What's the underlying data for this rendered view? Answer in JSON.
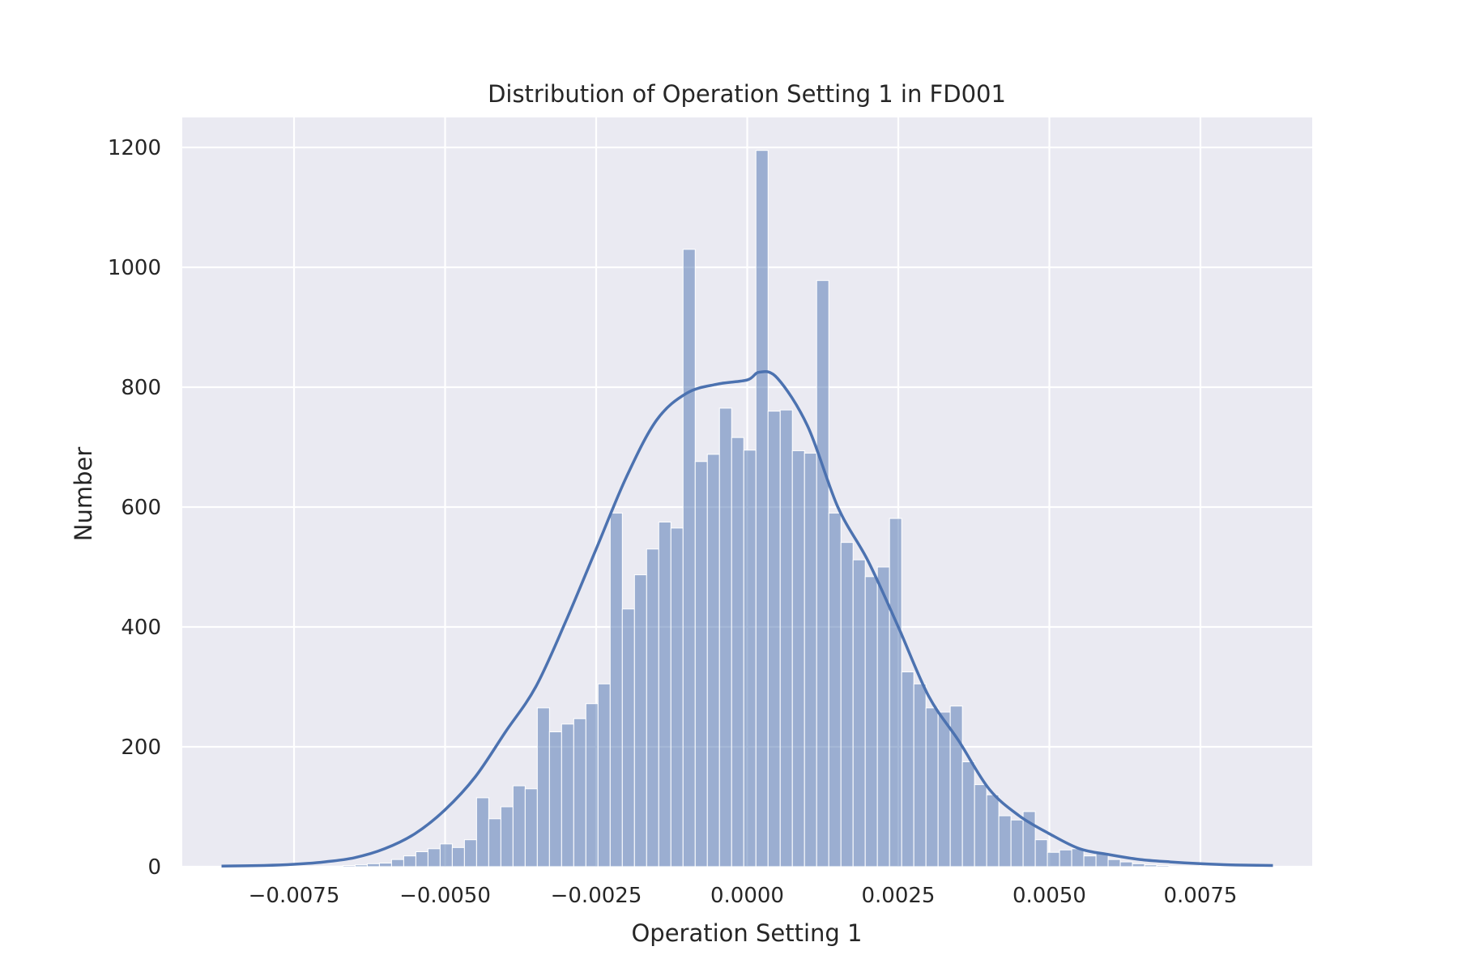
{
  "chart_data": {
    "type": "bar",
    "title": "Distribution of Operation Setting 1 in FD001",
    "xlabel": "Operation Setting 1",
    "ylabel": "Number",
    "xlim": [
      -0.00935,
      0.00935
    ],
    "ylim": [
      0,
      1250
    ],
    "x_ticks": [
      -0.0075,
      -0.005,
      -0.0025,
      0.0,
      0.0025,
      0.005,
      0.0075
    ],
    "x_tick_labels": [
      "−0.0075",
      "−0.0050",
      "−0.0025",
      "0.0000",
      "0.0025",
      "0.0050",
      "0.0075"
    ],
    "y_ticks": [
      0,
      200,
      400,
      600,
      800,
      1000,
      1200
    ],
    "y_tick_labels": [
      "0",
      "200",
      "400",
      "600",
      "800",
      "1000",
      "1200"
    ],
    "grid": true,
    "background": "#eaeaf2",
    "bar_color": "#4c72b0",
    "bins": {
      "start": -0.0087,
      "width": 0.000201,
      "counts": [
        1,
        0,
        0,
        0,
        0,
        0,
        0,
        0,
        1,
        1,
        2,
        3,
        5,
        6,
        12,
        18,
        25,
        30,
        38,
        32,
        45,
        115,
        80,
        100,
        135,
        130,
        265,
        225,
        238,
        247,
        272,
        305,
        590,
        430,
        487,
        530,
        575,
        565,
        1030,
        676,
        688,
        765,
        716,
        695,
        1195,
        760,
        762,
        694,
        690,
        978,
        590,
        541,
        512,
        484,
        500,
        581,
        325,
        305,
        265,
        258,
        268,
        175,
        137,
        120,
        85,
        78,
        92,
        45,
        24,
        28,
        30,
        18,
        22,
        12,
        8,
        5,
        3,
        2,
        1,
        1,
        1,
        1,
        1,
        1,
        1,
        1
      ]
    },
    "kde": {
      "x": [
        -0.0087,
        -0.008,
        -0.0075,
        -0.007,
        -0.0065,
        -0.006,
        -0.0055,
        -0.005,
        -0.0045,
        -0.004,
        -0.0035,
        -0.003,
        -0.0025,
        -0.002,
        -0.0015,
        -0.001,
        -0.0005,
        0.0,
        0.0002,
        0.0005,
        0.001,
        0.0015,
        0.002,
        0.0025,
        0.003,
        0.0035,
        0.004,
        0.0045,
        0.005,
        0.0055,
        0.006,
        0.0065,
        0.007,
        0.0075,
        0.008,
        0.0087
      ],
      "y": [
        1,
        2,
        4,
        8,
        15,
        30,
        55,
        95,
        150,
        225,
        300,
        410,
        530,
        650,
        745,
        790,
        805,
        812,
        825,
        815,
        735,
        600,
        510,
        400,
        285,
        210,
        130,
        85,
        55,
        30,
        20,
        12,
        8,
        5,
        3,
        2
      ]
    }
  }
}
